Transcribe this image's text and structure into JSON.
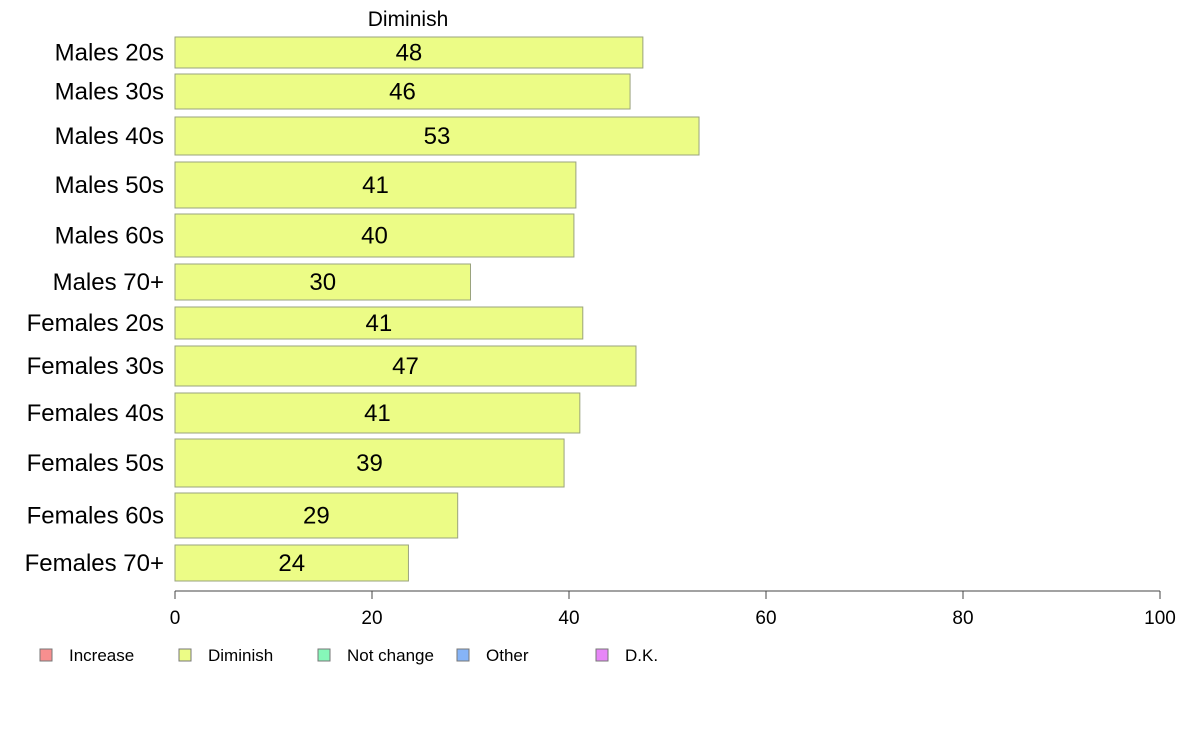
{
  "chart_data": {
    "type": "bar",
    "orientation": "horizontal",
    "title": "Diminish",
    "categories": [
      "Males 20s",
      "Males 30s",
      "Males 40s",
      "Males 50s",
      "Males 60s",
      "Males 70+",
      "Females 20s",
      "Females 30s",
      "Females 40s",
      "Females 50s",
      "Females 60s",
      "Females 70+"
    ],
    "series": [
      {
        "name": "Diminish",
        "color": "#ecfc86",
        "values": [
          47.5,
          46.2,
          53.2,
          40.7,
          40.5,
          30.0,
          41.4,
          46.8,
          41.1,
          39.5,
          28.7,
          23.7
        ]
      }
    ],
    "value_labels": [
      "48",
      "46",
      "53",
      "41",
      "40",
      "30",
      "41",
      "47",
      "41",
      "39",
      "29",
      "24"
    ],
    "xlim": [
      0,
      100
    ],
    "xticks": [
      0,
      20,
      40,
      60,
      80,
      100
    ],
    "grid": false,
    "legend_position": "bottom",
    "legend": [
      {
        "label": "Increase",
        "color": "#f78f8f"
      },
      {
        "label": "Diminish",
        "color": "#ecfc86"
      },
      {
        "label": "Not change",
        "color": "#86f7b9"
      },
      {
        "label": "Other",
        "color": "#86b4f7"
      },
      {
        "label": "D.K.",
        "color": "#e786f7"
      }
    ]
  }
}
